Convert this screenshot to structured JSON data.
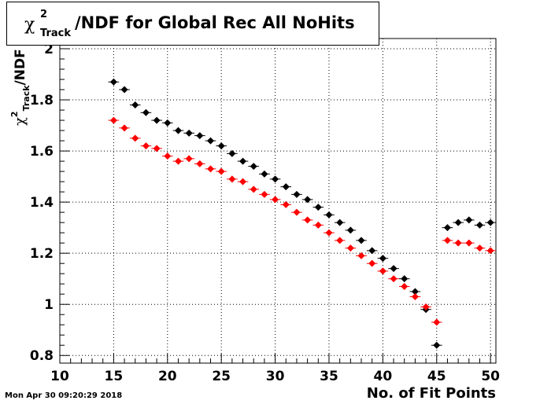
{
  "chart_data": {
    "type": "scatter",
    "title": {
      "chi": "χ",
      "sup": "2",
      "sub": "Track",
      "rest": "/NDF for Global Rec All NoHits"
    },
    "xlabel": "No. of Fit Points",
    "ylabel": {
      "chi": "χ",
      "sup": "2",
      "sub": "Track",
      "rest": "/NDF"
    },
    "xlim": [
      10,
      50.5
    ],
    "ylim": [
      0.77,
      2.04
    ],
    "x_ticks": [
      10,
      15,
      20,
      25,
      30,
      35,
      40,
      45,
      50
    ],
    "y_ticks": [
      0.8,
      1,
      1.2,
      1.4,
      1.6,
      1.8,
      2
    ],
    "y_tick_labels": [
      "0.8",
      "1",
      "1.2",
      "1.4",
      "1.6",
      "1.8",
      "2"
    ],
    "grid": true,
    "series": [
      {
        "color": "#000000",
        "x": [
          15,
          16,
          17,
          18,
          19,
          20,
          21,
          22,
          23,
          24,
          25,
          26,
          27,
          28,
          29,
          30,
          31,
          32,
          33,
          34,
          35,
          36,
          37,
          38,
          39,
          40,
          41,
          42,
          43,
          44,
          45,
          46,
          47,
          48,
          49,
          50
        ],
        "y": [
          1.87,
          1.84,
          1.78,
          1.75,
          1.72,
          1.71,
          1.68,
          1.67,
          1.66,
          1.64,
          1.62,
          1.59,
          1.56,
          1.54,
          1.51,
          1.49,
          1.46,
          1.43,
          1.41,
          1.38,
          1.35,
          1.32,
          1.29,
          1.25,
          1.21,
          1.18,
          1.14,
          1.1,
          1.05,
          0.98,
          0.84,
          1.3,
          1.32,
          1.33,
          1.31,
          1.32
        ]
      },
      {
        "color": "#ff0000",
        "x": [
          15,
          16,
          17,
          18,
          19,
          20,
          21,
          22,
          23,
          24,
          25,
          26,
          27,
          28,
          29,
          30,
          31,
          32,
          33,
          34,
          35,
          36,
          37,
          38,
          39,
          40,
          41,
          42,
          43,
          44,
          45,
          46,
          47,
          48,
          49,
          50
        ],
        "y": [
          1.72,
          1.69,
          1.65,
          1.62,
          1.61,
          1.58,
          1.56,
          1.57,
          1.55,
          1.53,
          1.52,
          1.49,
          1.48,
          1.45,
          1.43,
          1.41,
          1.39,
          1.36,
          1.33,
          1.31,
          1.28,
          1.25,
          1.22,
          1.19,
          1.16,
          1.13,
          1.1,
          1.07,
          1.03,
          0.99,
          0.93,
          1.25,
          1.24,
          1.24,
          1.22,
          1.21
        ]
      }
    ]
  },
  "footer": {
    "datestamp": "Mon Apr 30 09:20:29 2018"
  }
}
